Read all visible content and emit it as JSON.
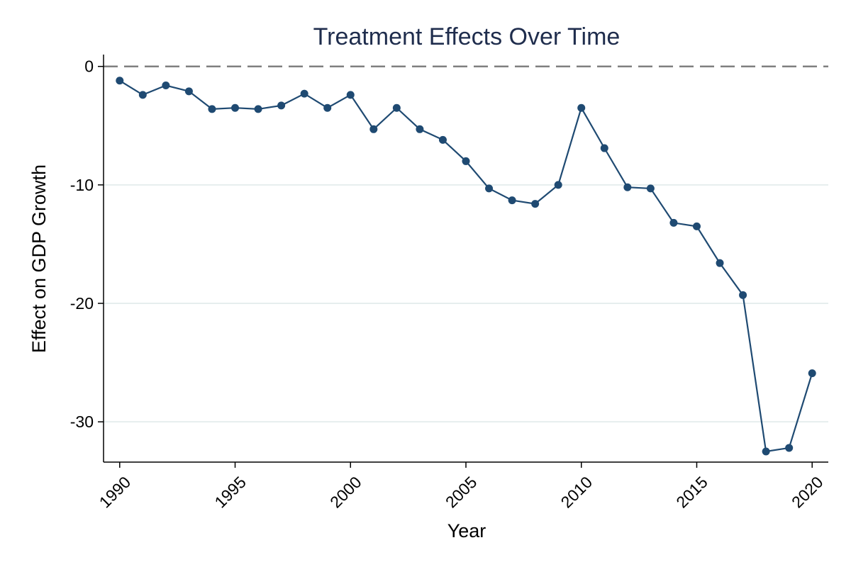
{
  "chart_data": {
    "type": "line",
    "title": "Treatment Effects Over Time",
    "xlabel": "Year",
    "ylabel": "Effect on GDP Growth",
    "x": [
      1990,
      1991,
      1992,
      1993,
      1994,
      1995,
      1996,
      1997,
      1998,
      1999,
      2000,
      2001,
      2002,
      2003,
      2004,
      2005,
      2006,
      2007,
      2008,
      2009,
      2010,
      2011,
      2012,
      2013,
      2014,
      2015,
      2016,
      2017,
      2018,
      2019,
      2020
    ],
    "series": [
      {
        "values": [
          -1.2,
          -2.4,
          -1.6,
          -2.1,
          -3.6,
          -3.5,
          -3.6,
          -3.3,
          -2.3,
          -3.5,
          -2.4,
          -5.3,
          -3.5,
          -5.3,
          -6.2,
          -8.0,
          -10.3,
          -11.3,
          -11.6,
          -10.0,
          -3.5,
          -6.9,
          -10.2,
          -10.3,
          -13.2,
          -13.5,
          -16.6,
          -19.3,
          -32.5,
          -32.2,
          -25.9
        ],
        "color": "#1f4a72"
      }
    ],
    "xticks": [
      "1990",
      "1995",
      "2000",
      "2005",
      "2010",
      "2015",
      "2020"
    ],
    "yticks": [
      "0",
      "-10",
      "-20",
      "-30"
    ],
    "xlim": [
      1989.3,
      2020.7
    ],
    "ylim": [
      -33.4,
      1.0
    ],
    "reference_line": {
      "y": 0,
      "style": "dashed",
      "color": "#808080"
    },
    "grid": "horizontal",
    "grid_color": "#e6eeee",
    "marker": "circle",
    "title_color": "#1f2d4d"
  }
}
